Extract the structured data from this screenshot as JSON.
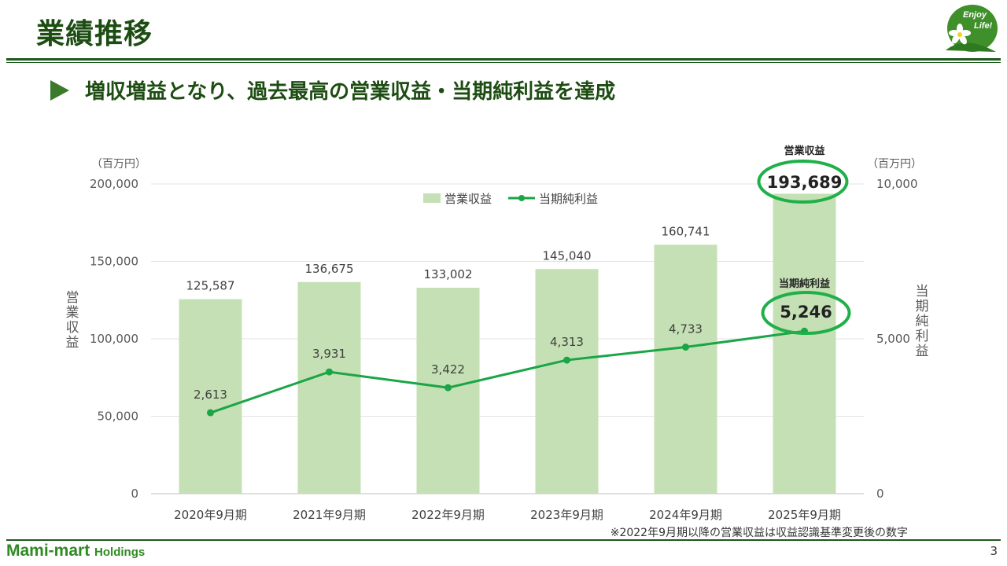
{
  "page": {
    "title": "業績推移",
    "subtitle": "増収増益となり、過去最高の営業収益・当期純利益を達成",
    "logo_text_line1": "Enjoy",
    "logo_text_line2": "Life!",
    "brand_main": "Mami-mart",
    "brand_sub": "Holdings",
    "page_number": "3",
    "note": "※2022年9月期以降の営業収益は収益認識基準変更後の数字"
  },
  "colors": {
    "title": "#1d4d12",
    "bar": "#c5e0b4",
    "line": "#1aa546",
    "highlight_circle": "#1fb04a",
    "rule": "#1d5a1d"
  },
  "chart_data": {
    "type": "bar",
    "categories": [
      "2020年9月期",
      "2021年9月期",
      "2022年9月期",
      "2023年9月期",
      "2024年9月期",
      "2025年9月期"
    ],
    "series": [
      {
        "name": "営業収益",
        "type": "bar",
        "axis": "left",
        "values": [
          125587,
          136675,
          133002,
          145040,
          160741,
          193689
        ],
        "labels": [
          "125,587",
          "136,675",
          "133,002",
          "145,040",
          "160,741",
          "193,689"
        ]
      },
      {
        "name": "当期純利益",
        "type": "line",
        "axis": "right",
        "values": [
          2613,
          3931,
          3422,
          4313,
          4733,
          5246
        ],
        "labels": [
          "2,613",
          "3,931",
          "3,422",
          "4,313",
          "4,733",
          "5,246"
        ]
      }
    ],
    "y_left": {
      "label": "営業収益",
      "unit": "（百万円）",
      "ylim": [
        0,
        200000
      ],
      "ticks": [
        0,
        50000,
        100000,
        150000,
        200000
      ],
      "tick_labels": [
        "0",
        "50,000",
        "100,000",
        "150,000",
        "200,000"
      ]
    },
    "y_right": {
      "label": "当期純利益",
      "unit": "（百万円）",
      "ylim": [
        0,
        10000
      ],
      "ticks": [
        0,
        5000,
        10000
      ],
      "tick_labels": [
        "0",
        "5,000",
        "10,000"
      ]
    },
    "grid": true,
    "legend": "top-center",
    "annotations": [
      {
        "series": "営業収益",
        "category": "2025年9月期",
        "caption": "営業収益",
        "value_label": "193,689"
      },
      {
        "series": "当期純利益",
        "category": "2025年9月期",
        "caption": "当期純利益",
        "value_label": "5,246"
      }
    ]
  }
}
